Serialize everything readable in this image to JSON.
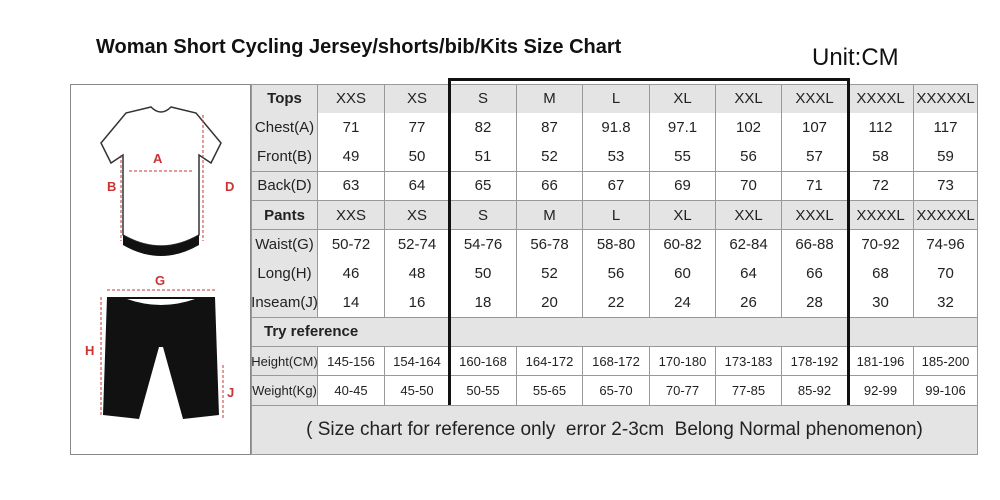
{
  "header": {
    "title": "Woman Short Cycling Jersey/shorts/bib/Kits Size Chart",
    "unit": "Unit:CM"
  },
  "diagram": {
    "jersey_labels": [
      "A",
      "B",
      "D"
    ],
    "shorts_labels": [
      "G",
      "H",
      "J"
    ]
  },
  "table": {
    "rows": [
      [
        "Tops",
        "XXS",
        "XS",
        "S",
        "M",
        "L",
        "XL",
        "XXL",
        "XXXL",
        "XXXXL",
        "XXXXXL"
      ],
      [
        "Chest(A)",
        "71",
        "77",
        "82",
        "87",
        "91.8",
        "97.1",
        "102",
        "107",
        "112",
        "117"
      ],
      [
        "Front(B)",
        "49",
        "50",
        "51",
        "52",
        "53",
        "55",
        "56",
        "57",
        "58",
        "59"
      ],
      [
        "Back(D)",
        "63",
        "64",
        "65",
        "66",
        "67",
        "69",
        "70",
        "71",
        "72",
        "73"
      ],
      [
        "Pants",
        "XXS",
        "XS",
        "S",
        "M",
        "L",
        "XL",
        "XXL",
        "XXXL",
        "XXXXL",
        "XXXXXL"
      ],
      [
        "Waist(G)",
        "50-72",
        "52-74",
        "54-76",
        "56-78",
        "58-80",
        "60-82",
        "62-84",
        "66-88",
        "70-92",
        "74-96"
      ],
      [
        "Long(H)",
        "46",
        "48",
        "50",
        "52",
        "56",
        "60",
        "64",
        "66",
        "68",
        "70"
      ],
      [
        "Inseam(J)",
        "14",
        "16",
        "18",
        "20",
        "22",
        "24",
        "26",
        "28",
        "30",
        "32"
      ],
      [
        "Try reference"
      ],
      [
        "Height(CM)",
        "145-156",
        "154-164",
        "160-168",
        "164-172",
        "168-172",
        "170-180",
        "173-183",
        "178-192",
        "181-196",
        "185-200"
      ],
      [
        "Weight(Kg)",
        "40-45",
        "45-50",
        "50-55",
        "55-65",
        "65-70",
        "70-77",
        "77-85",
        "85-92",
        "92-99",
        "99-106"
      ]
    ],
    "note": "( Size chart for reference only  error 2-3cm  Belong Normal phenomenon)"
  }
}
